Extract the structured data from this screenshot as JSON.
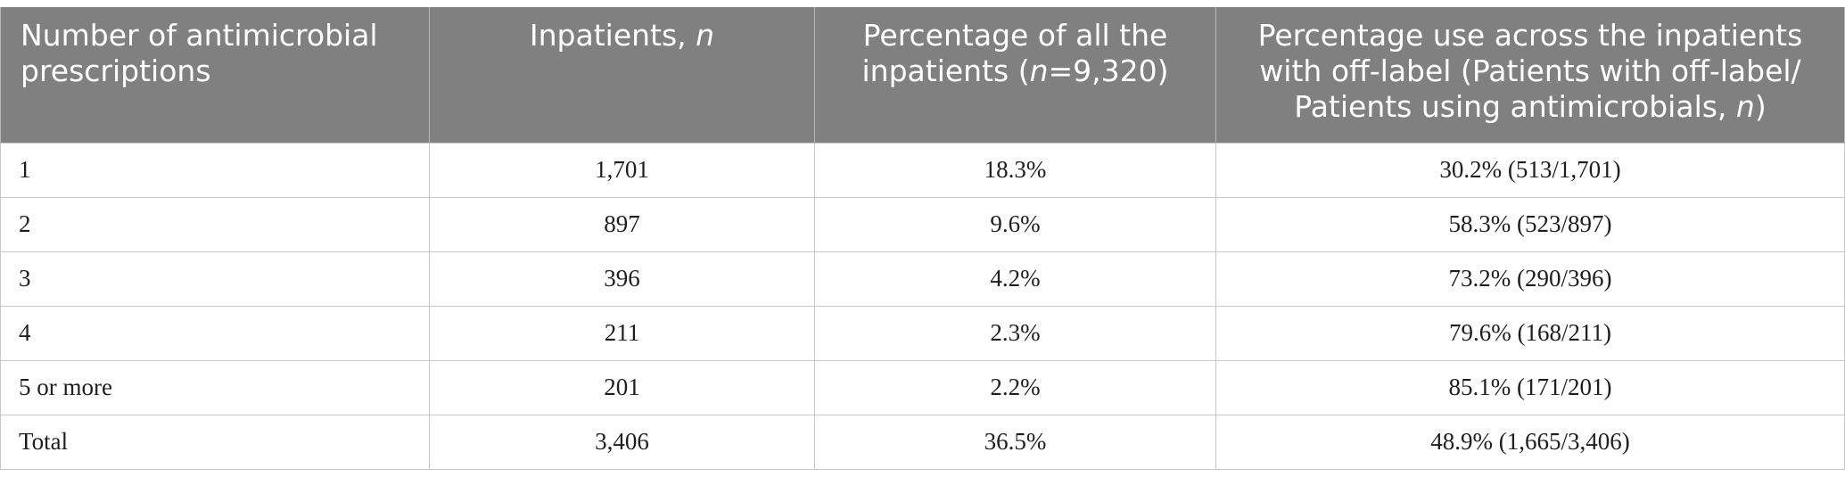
{
  "table": {
    "headers": {
      "col1": "Number of antimicrobial prescriptions",
      "col2_text": "Inpatients, ",
      "col2_italic": "n",
      "col3_line1": "Percentage of all the",
      "col3_pre": "inpatients (",
      "col3_italic": "n",
      "col3_post": "=9,320)",
      "col4_text": "Percentage use across the inpatients with off-label (Patients with off-label/ Patients using antimicrobials, ",
      "col4_italic": "n",
      "col4_post": ")"
    },
    "rows": [
      {
        "count": "1",
        "inpatients": "1,701",
        "pct_all": "18.3%",
        "pct_offlabel": "30.2% (513/1,701)"
      },
      {
        "count": "2",
        "inpatients": "897",
        "pct_all": "9.6%",
        "pct_offlabel": "58.3% (523/897)"
      },
      {
        "count": "3",
        "inpatients": "396",
        "pct_all": "4.2%",
        "pct_offlabel": "73.2% (290/396)"
      },
      {
        "count": "4",
        "inpatients": "211",
        "pct_all": "2.3%",
        "pct_offlabel": "79.6% (168/211)"
      },
      {
        "count": "5 or more",
        "inpatients": "201",
        "pct_all": "2.2%",
        "pct_offlabel": "85.1% (171/201)"
      },
      {
        "count": "Total",
        "inpatients": "3,406",
        "pct_all": "36.5%",
        "pct_offlabel": "48.9% (1,665/3,406)"
      }
    ]
  },
  "colors": {
    "header_bg": "#808080",
    "header_text": "#ffffff",
    "body_text": "#1e1e1e",
    "grid": "#c7c7c7"
  }
}
